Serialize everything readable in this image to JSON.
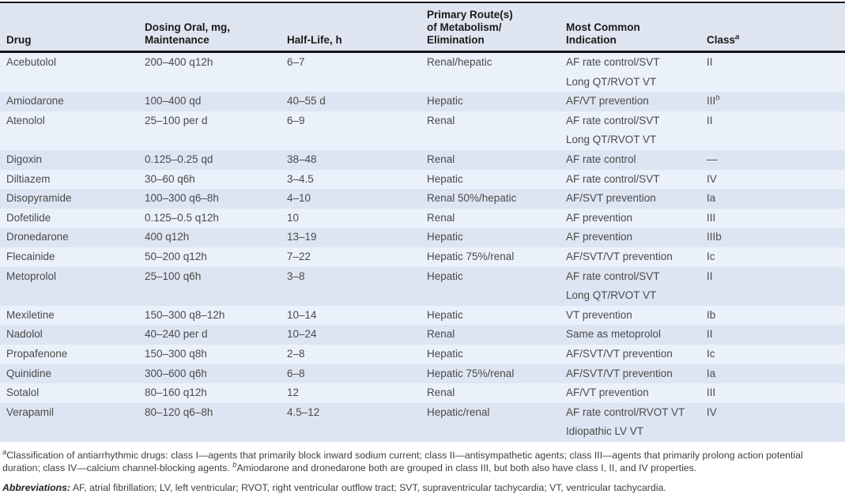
{
  "table": {
    "columns": [
      {
        "label": "Drug"
      },
      {
        "label": "Dosing Oral, mg,\nMaintenance"
      },
      {
        "label": "Half-Life, h"
      },
      {
        "label": "Primary Route(s)\nof Metabolism/\nElimination"
      },
      {
        "label": "Most Common\nIndication"
      },
      {
        "label": "Class",
        "sup": "a"
      }
    ],
    "rows": [
      {
        "drug": "Acebutolol",
        "dose": "200–400 q12h",
        "half_life": "6–7",
        "route": "Renal/hepatic",
        "indication": [
          "AF rate control/SVT",
          "Long QT/RVOT VT"
        ],
        "class": "II"
      },
      {
        "drug": "Amiodarone",
        "dose": "100–400 qd",
        "half_life": "40–55 d",
        "route": "Hepatic",
        "indication": [
          "AF/VT prevention"
        ],
        "class": "III",
        "class_sup": "b"
      },
      {
        "drug": "Atenolol",
        "dose": "25–100 per d",
        "half_life": "6–9",
        "route": "Renal",
        "indication": [
          "AF rate control/SVT",
          "Long QT/RVOT VT"
        ],
        "class": "II"
      },
      {
        "drug": "Digoxin",
        "dose": "0.125–0.25 qd",
        "half_life": "38–48",
        "route": "Renal",
        "indication": [
          "AF rate control"
        ],
        "class": "—"
      },
      {
        "drug": "Diltiazem",
        "dose": "30–60 q6h",
        "half_life": "3–4.5",
        "route": "Hepatic",
        "indication": [
          "AF rate control/SVT"
        ],
        "class": "IV"
      },
      {
        "drug": "Disopyramide",
        "dose": "100–300 q6–8h",
        "half_life": "4–10",
        "route": "Renal 50%/hepatic",
        "indication": [
          "AF/SVT prevention"
        ],
        "class": "Ia"
      },
      {
        "drug": "Dofetilide",
        "dose": "0.125–0.5 q12h",
        "half_life": "10",
        "route": "Renal",
        "indication": [
          "AF prevention"
        ],
        "class": "III"
      },
      {
        "drug": "Dronedarone",
        "dose": "400 q12h",
        "half_life": "13–19",
        "route": "Hepatic",
        "indication": [
          "AF prevention"
        ],
        "class": "IIIb"
      },
      {
        "drug": "Flecainide",
        "dose": "50–200 q12h",
        "half_life": "7–22",
        "route": "Hepatic 75%/renal",
        "indication": [
          "AF/SVT/VT prevention"
        ],
        "class": "Ic"
      },
      {
        "drug": "Metoprolol",
        "dose": "25–100 q6h",
        "half_life": "3–8",
        "route": "Hepatic",
        "indication": [
          "AF rate control/SVT",
          "Long QT/RVOT VT"
        ],
        "class": "II"
      },
      {
        "drug": "Mexiletine",
        "dose": "150–300 q8–12h",
        "half_life": "10–14",
        "route": "Hepatic",
        "indication": [
          "VT prevention"
        ],
        "class": "Ib"
      },
      {
        "drug": "Nadolol",
        "dose": "40–240 per d",
        "half_life": "10–24",
        "route": "Renal",
        "indication": [
          "Same as metoprolol"
        ],
        "class": "II"
      },
      {
        "drug": "Propafenone",
        "dose": "150–300 q8h",
        "half_life": "2–8",
        "route": "Hepatic",
        "indication": [
          "AF/SVT/VT prevention"
        ],
        "class": "Ic"
      },
      {
        "drug": "Quinidine",
        "dose": "300–600 q6h",
        "half_life": "6–8",
        "route": "Hepatic 75%/renal",
        "indication": [
          "AF/SVT/VT prevention"
        ],
        "class": "Ia"
      },
      {
        "drug": "Sotalol",
        "dose": "80–160 q12h",
        "half_life": "12",
        "route": "Renal",
        "indication": [
          "AF/VT prevention"
        ],
        "class": "III"
      },
      {
        "drug": "Verapamil",
        "dose": "80–120 q6–8h",
        "half_life": "4.5–12",
        "route": "Hepatic/renal",
        "indication": [
          "AF rate control/RVOT VT",
          "Idiopathic LV VT"
        ],
        "class": "IV"
      }
    ]
  },
  "footnote": {
    "segments": [
      {
        "sup": "a"
      },
      {
        "text": "Classification of antiarrhythmic drugs: class I—agents that primarily block inward sodium current; class II—antisympathetic agents; class III—agents that primarily prolong action potential duration; class IV—calcium channel-blocking agents. "
      },
      {
        "sup": "b"
      },
      {
        "text": "Amiodarone and dronedarone both are grouped in class III, but both also have class I, II, and IV properties."
      }
    ]
  },
  "abbreviations": {
    "label": "Abbreviations:",
    "text": " AF, atrial fibrillation; LV, left ventricular; RVOT, right ventricular outflow tract; SVT, supraventricular tachycardia; VT, ventricular tachycardia."
  },
  "colors": {
    "row_light": "#eaf1fa",
    "row_dark": "#dee5f2",
    "header_bg": "#dfe5f0",
    "rule": "#16161c",
    "text": "#4a4a4a",
    "header_text": "#1a1a1a"
  }
}
